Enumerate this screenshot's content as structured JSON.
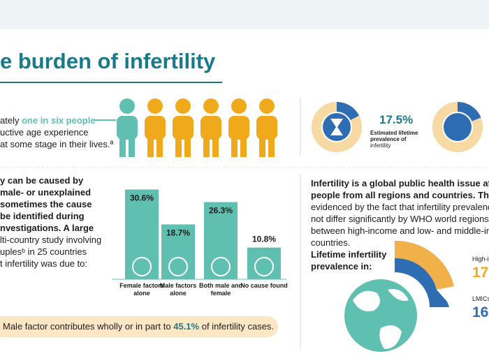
{
  "header": {
    "title": "e burden of infertility"
  },
  "intro": {
    "lead": "ately ",
    "highlight": "one in six people",
    "line2": "uctive age experience",
    "line3": "at some stage in their lives.ª"
  },
  "donut": {
    "value": 17.5,
    "label": "17.5%",
    "caption": [
      "Estimated lifetime",
      "prevalence of",
      "infertility"
    ]
  },
  "causes": {
    "lines": [
      "y can be caused by",
      "male- or unexplained",
      "sometimes the cause",
      "be identified during",
      "nvestigations. A large",
      "lti-country study involving",
      "uplesᵇ in 25 countries",
      "t infertility was due to:"
    ]
  },
  "chart_data": {
    "type": "bar",
    "categories": [
      "Female factors alone",
      "Male factors alone",
      "Both male and female",
      "No cause found"
    ],
    "values": [
      30.6,
      18.7,
      26.3,
      10.8
    ],
    "value_labels": [
      "30.6%",
      "18.7%",
      "26.3%",
      "10.8%"
    ],
    "color": "#5fbfb1"
  },
  "banner": {
    "before": "Male factor contributes wholly or in part to ",
    "highlight": "45.1%",
    "after": " of infertility cases."
  },
  "global": {
    "lines": [
      "Infertility is a global public health issue affe",
      "people from all regions and countries. This",
      "evidenced by the fact that infertility prevalence",
      "not differ significantly by WHO world regions or",
      "between high-income and low- and middle-inco",
      "countries."
    ],
    "prevalence_title": [
      "Lifetime infertility",
      "prevalence in:"
    ],
    "high_income": {
      "label": "High-i",
      "value_text": "17."
    },
    "lmics": {
      "label": "LMICs",
      "value_text": "16."
    }
  }
}
